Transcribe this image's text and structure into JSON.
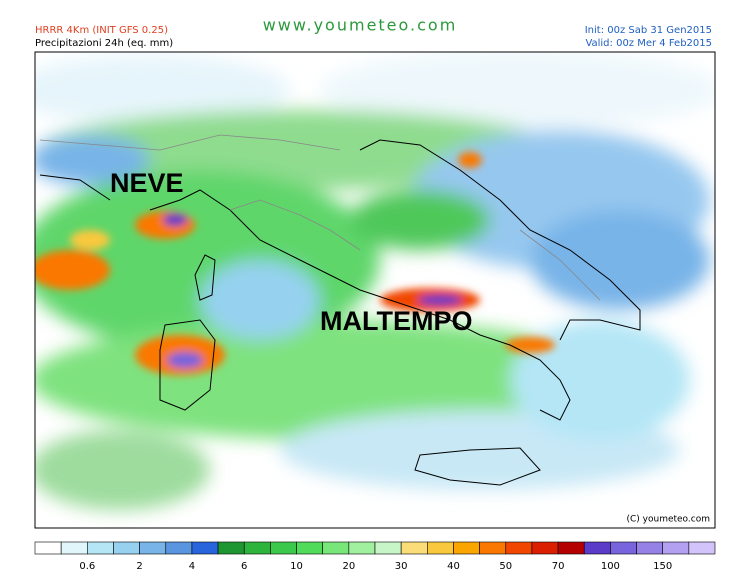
{
  "header": {
    "model": "HRRR 4Km (INIT GFS 0.25)",
    "field": "Precipitazioni 24h (eq. mm)",
    "site": "www.youmeteo.com",
    "init": "Init: 00z Sab 31 Gen2015",
    "valid": "Valid: 00z Mer  4  Feb2015"
  },
  "map": {
    "labels": [
      "NEVE",
      "MALTEMPO"
    ],
    "copyright": "(C) youmeteo.com"
  },
  "colorbar": {
    "labels": [
      0.6,
      2,
      4,
      6,
      10,
      20,
      30,
      40,
      50,
      70,
      100,
      150
    ],
    "colors": [
      "#ffffff",
      "#e0f6fb",
      "#b4e6f6",
      "#96d2f0",
      "#78b4e8",
      "#5a96e0",
      "#2864dc",
      "#1e9632",
      "#2db43c",
      "#3cc84b",
      "#50dc5a",
      "#78e678",
      "#a0f0a0",
      "#c8f5c8",
      "#fadc78",
      "#fac83c",
      "#faa500",
      "#fa7800",
      "#f04600",
      "#dc1e00",
      "#b40000",
      "#5a3cc8",
      "#7864dc",
      "#9682e6",
      "#b4a0f0",
      "#d2c3fa"
    ]
  }
}
